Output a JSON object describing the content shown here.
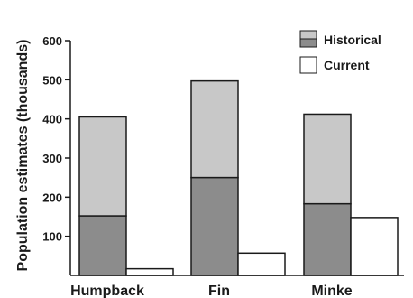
{
  "chart_data": {
    "type": "bar",
    "ylabel": "Population estimates (thousands)",
    "ylim": [
      0,
      600
    ],
    "yticks": [
      100,
      200,
      300,
      400,
      500,
      600
    ],
    "categories": [
      "Humpback",
      "Fin",
      "Minke"
    ],
    "series": [
      {
        "name": "Historical",
        "values": [
          405,
          497,
          412
        ],
        "lower_range_values": [
          152,
          250,
          183
        ],
        "colors": {
          "upper": "#c8c8c8",
          "lower": "#8c8c8c"
        }
      },
      {
        "name": "Current",
        "values": [
          17,
          57,
          148
        ],
        "colors": {
          "fill": "#ffffff"
        }
      }
    ],
    "legend": {
      "placement": "top-right"
    },
    "grid": false
  }
}
